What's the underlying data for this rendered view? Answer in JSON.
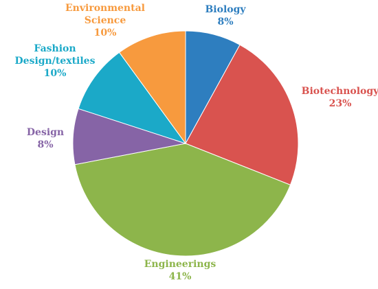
{
  "chart_data": {
    "type": "pie",
    "title": "",
    "slices": [
      {
        "name": "Biology",
        "value": 8,
        "value_label": "8%",
        "color": "#2E7EBF"
      },
      {
        "name": "Biotechnology",
        "value": 23,
        "value_label": "23%",
        "color": "#D9534F"
      },
      {
        "name": "Engineerings",
        "value": 41,
        "value_label": "41%",
        "color": "#8DB54B"
      },
      {
        "name": "Design",
        "value": 8,
        "value_label": "8%",
        "color": "#8664A6"
      },
      {
        "name": "Fashion Design/textiles",
        "value": 10,
        "value_label": "10%",
        "color": "#1BA9C8"
      },
      {
        "name": "Environmental Science",
        "value": 10,
        "value_label": "10%",
        "color": "#F79A3E"
      }
    ],
    "legend": "none",
    "labels": "outside"
  }
}
